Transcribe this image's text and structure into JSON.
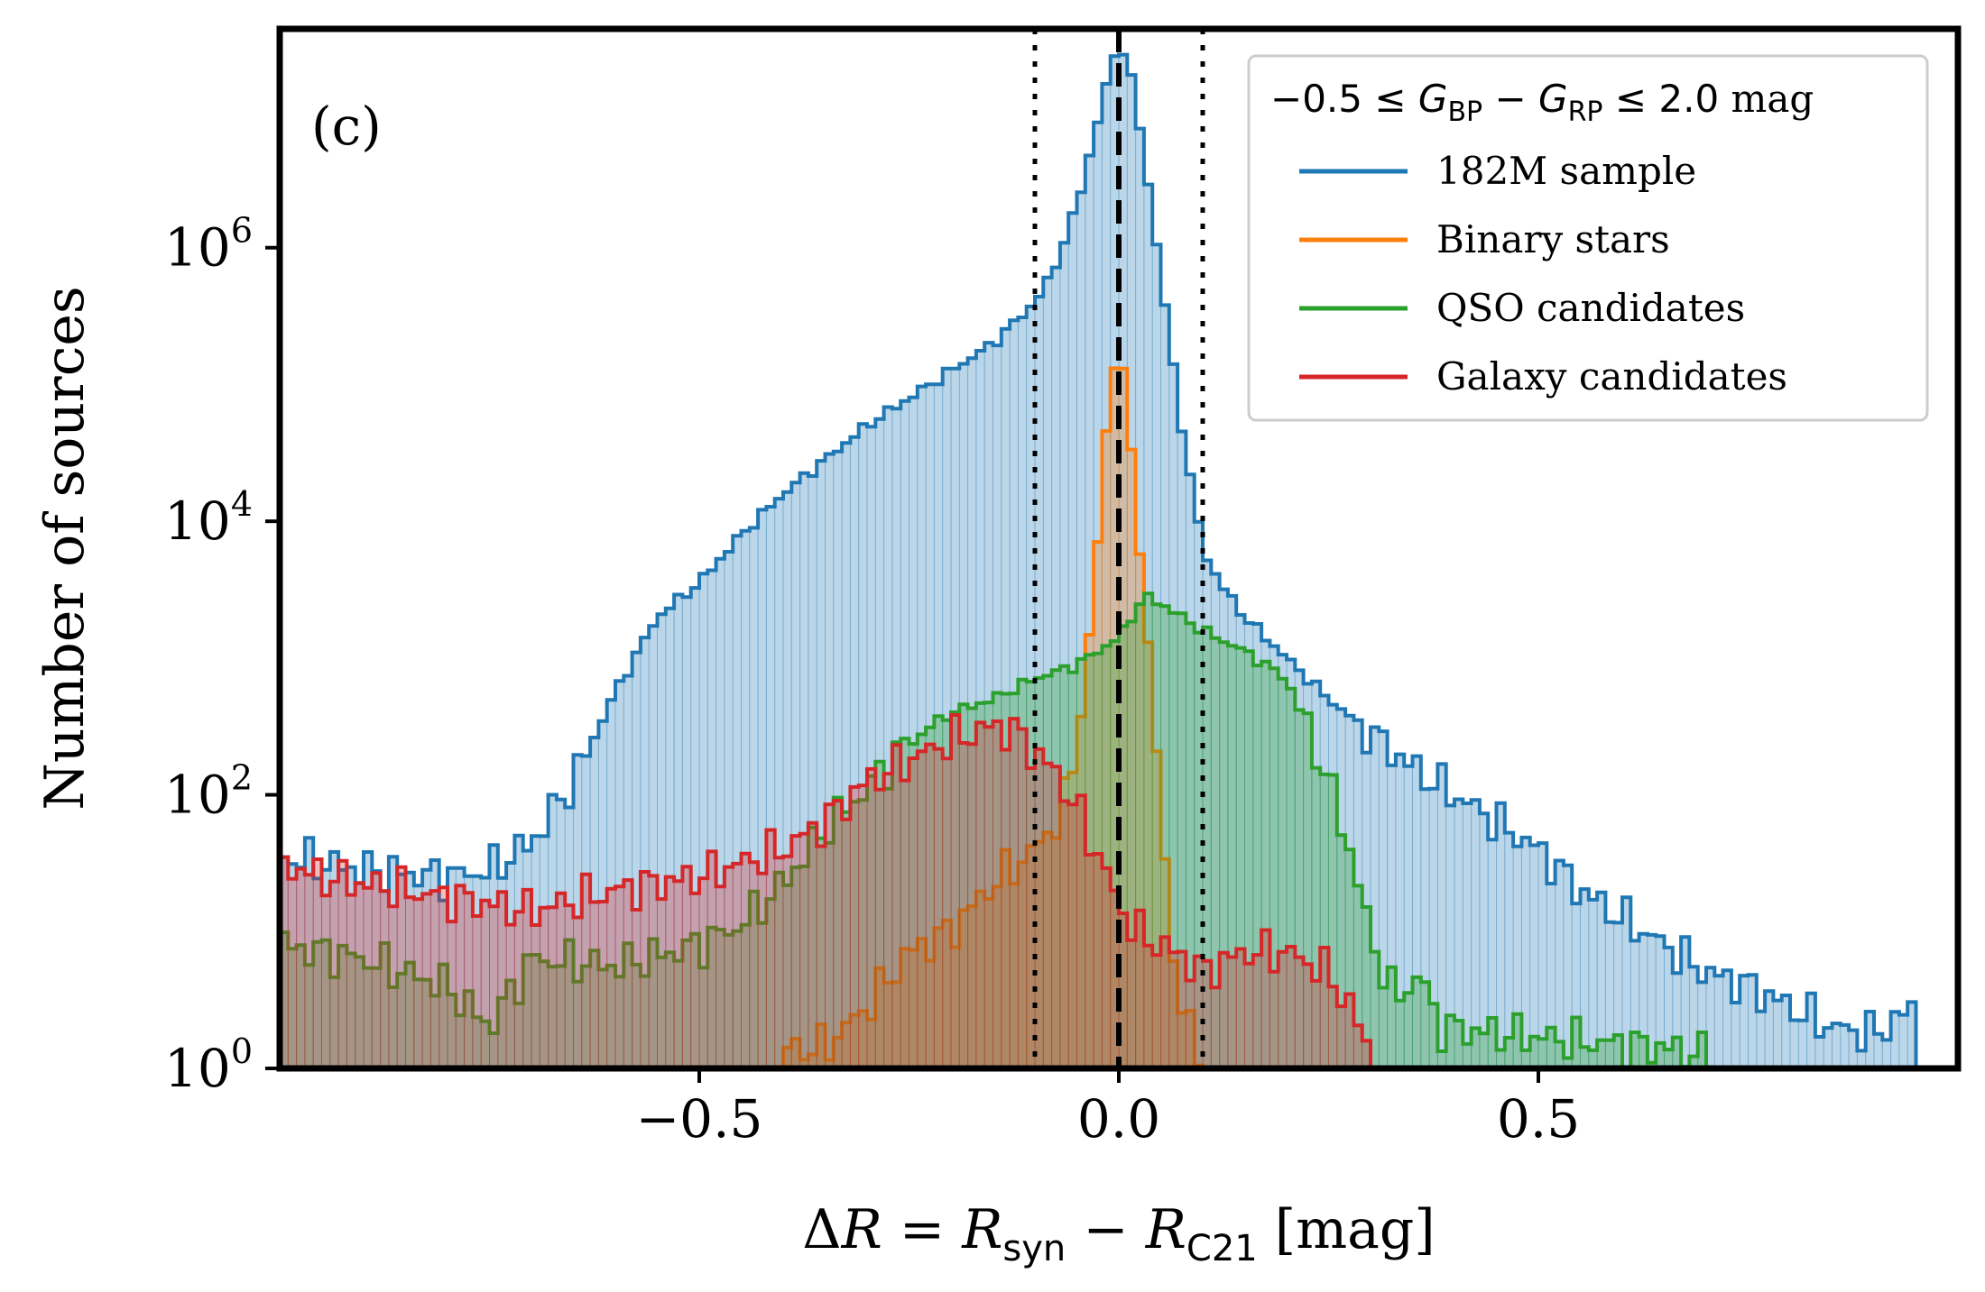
{
  "chart_data": {
    "type": "histogram",
    "panel_label": "(c)",
    "xlabel": "ΔR = R_syn − R_C21 [mag]",
    "ylabel": "Number of sources",
    "xlim": [
      -1.0,
      1.0
    ],
    "ylim_log10": [
      0,
      7.6
    ],
    "xticks": [
      {
        "value": -0.5,
        "label": "−0.5"
      },
      {
        "value": 0.0,
        "label": "0.0"
      },
      {
        "value": 0.5,
        "label": "0.5"
      }
    ],
    "yticks": [
      {
        "exp": 0,
        "base": "10",
        "sup": "0"
      },
      {
        "exp": 2,
        "base": "10",
        "sup": "2"
      },
      {
        "exp": 4,
        "base": "10",
        "sup": "4"
      },
      {
        "exp": 6,
        "base": "10",
        "sup": "6"
      }
    ],
    "reference_lines": [
      {
        "x": 0.0,
        "style": "dashed"
      },
      {
        "x": -0.1,
        "style": "dotted"
      },
      {
        "x": 0.1,
        "style": "dotted"
      }
    ],
    "legend": {
      "title": "−0.5 ≤ G_BP − G_RP ≤ 2.0 mag",
      "placement": "top-right"
    },
    "bin_width": 0.01,
    "series": [
      {
        "name": "182M sample",
        "color": "#1f77b4",
        "points_log10": [
          [
            -1.0,
            1.55
          ],
          [
            -0.9,
            1.45
          ],
          [
            -0.8,
            1.4
          ],
          [
            -0.75,
            1.45
          ],
          [
            -0.7,
            1.65
          ],
          [
            -0.65,
            2.1
          ],
          [
            -0.6,
            2.75
          ],
          [
            -0.55,
            3.3
          ],
          [
            -0.5,
            3.55
          ],
          [
            -0.45,
            3.9
          ],
          [
            -0.4,
            4.2
          ],
          [
            -0.3,
            4.7
          ],
          [
            -0.2,
            5.1
          ],
          [
            -0.15,
            5.3
          ],
          [
            -0.1,
            5.6
          ],
          [
            -0.08,
            5.8
          ],
          [
            -0.05,
            6.3
          ],
          [
            -0.03,
            6.8
          ],
          [
            -0.01,
            7.3
          ],
          [
            0.0,
            7.5
          ],
          [
            0.01,
            7.4
          ],
          [
            0.03,
            6.7
          ],
          [
            0.05,
            5.8
          ],
          [
            0.07,
            4.9
          ],
          [
            0.08,
            4.5
          ],
          [
            0.1,
            3.8
          ],
          [
            0.12,
            3.55
          ],
          [
            0.15,
            3.3
          ],
          [
            0.2,
            3.0
          ],
          [
            0.25,
            2.7
          ],
          [
            0.3,
            2.45
          ],
          [
            0.35,
            2.2
          ],
          [
            0.4,
            2.0
          ],
          [
            0.45,
            1.8
          ],
          [
            0.5,
            1.6
          ],
          [
            0.55,
            1.3
          ],
          [
            0.6,
            1.1
          ],
          [
            0.65,
            0.9
          ],
          [
            0.7,
            0.7
          ],
          [
            0.75,
            0.6
          ],
          [
            0.8,
            0.45
          ],
          [
            0.85,
            0.3
          ],
          [
            0.9,
            0.25
          ],
          [
            0.95,
            0.45
          ]
        ]
      },
      {
        "name": "Binary stars",
        "color": "#ff7f0e",
        "points_log10": [
          [
            -0.4,
            0.15
          ],
          [
            -0.35,
            0.15
          ],
          [
            -0.3,
            0.45
          ],
          [
            -0.25,
            0.85
          ],
          [
            -0.2,
            1.0
          ],
          [
            -0.15,
            1.35
          ],
          [
            -0.1,
            1.6
          ],
          [
            -0.07,
            1.85
          ],
          [
            -0.05,
            2.3
          ],
          [
            -0.04,
            2.9
          ],
          [
            -0.03,
            3.4
          ],
          [
            -0.02,
            4.3
          ],
          [
            -0.01,
            5.0
          ],
          [
            0.0,
            5.3
          ],
          [
            0.01,
            4.9
          ],
          [
            0.02,
            4.1
          ],
          [
            0.03,
            3.5
          ],
          [
            0.04,
            2.7
          ],
          [
            0.05,
            1.9
          ],
          [
            0.06,
            1.1
          ],
          [
            0.07,
            0.6
          ],
          [
            0.08,
            0.3
          ],
          [
            0.1,
            0.1
          ]
        ]
      },
      {
        "name": "QSO candidates",
        "color": "#2ca02c",
        "points_log10": [
          [
            -1.0,
            0.9
          ],
          [
            -0.9,
            0.8
          ],
          [
            -0.8,
            0.6
          ],
          [
            -0.75,
            0.3
          ],
          [
            -0.7,
            0.8
          ],
          [
            -0.6,
            0.75
          ],
          [
            -0.5,
            0.9
          ],
          [
            -0.45,
            1.05
          ],
          [
            -0.4,
            1.35
          ],
          [
            -0.35,
            1.75
          ],
          [
            -0.3,
            2.05
          ],
          [
            -0.25,
            2.4
          ],
          [
            -0.2,
            2.6
          ],
          [
            -0.15,
            2.7
          ],
          [
            -0.1,
            2.85
          ],
          [
            -0.05,
            2.95
          ],
          [
            0.0,
            3.15
          ],
          [
            0.03,
            3.45
          ],
          [
            0.05,
            3.4
          ],
          [
            0.1,
            3.2
          ],
          [
            0.15,
            3.05
          ],
          [
            0.2,
            2.85
          ],
          [
            0.22,
            2.55
          ],
          [
            0.25,
            2.1
          ],
          [
            0.28,
            1.5
          ],
          [
            0.3,
            0.95
          ],
          [
            0.33,
            0.5
          ],
          [
            0.36,
            0.7
          ],
          [
            0.38,
            0.3
          ],
          [
            0.55,
            0.2
          ],
          [
            0.65,
            0.15
          ],
          [
            0.7,
            0.1
          ]
        ]
      },
      {
        "name": "Galaxy candidates",
        "color": "#d62728",
        "points_log10": [
          [
            -1.0,
            1.5
          ],
          [
            -0.95,
            1.4
          ],
          [
            -0.9,
            1.35
          ],
          [
            -0.85,
            1.3
          ],
          [
            -0.8,
            1.25
          ],
          [
            -0.7,
            1.15
          ],
          [
            -0.6,
            1.3
          ],
          [
            -0.55,
            1.35
          ],
          [
            -0.5,
            1.4
          ],
          [
            -0.45,
            1.5
          ],
          [
            -0.4,
            1.6
          ],
          [
            -0.35,
            1.8
          ],
          [
            -0.3,
            2.1
          ],
          [
            -0.25,
            2.25
          ],
          [
            -0.2,
            2.4
          ],
          [
            -0.15,
            2.5
          ],
          [
            -0.12,
            2.45
          ],
          [
            -0.1,
            2.3
          ],
          [
            -0.08,
            2.2
          ],
          [
            -0.05,
            1.9
          ],
          [
            -0.02,
            1.5
          ],
          [
            0.0,
            1.2
          ],
          [
            0.02,
            1.0
          ],
          [
            0.05,
            0.9
          ],
          [
            0.08,
            0.8
          ],
          [
            0.1,
            0.7
          ],
          [
            0.15,
            0.85
          ],
          [
            0.2,
            0.85
          ],
          [
            0.25,
            0.7
          ],
          [
            0.28,
            0.4
          ],
          [
            0.3,
            0.1
          ]
        ]
      }
    ]
  }
}
